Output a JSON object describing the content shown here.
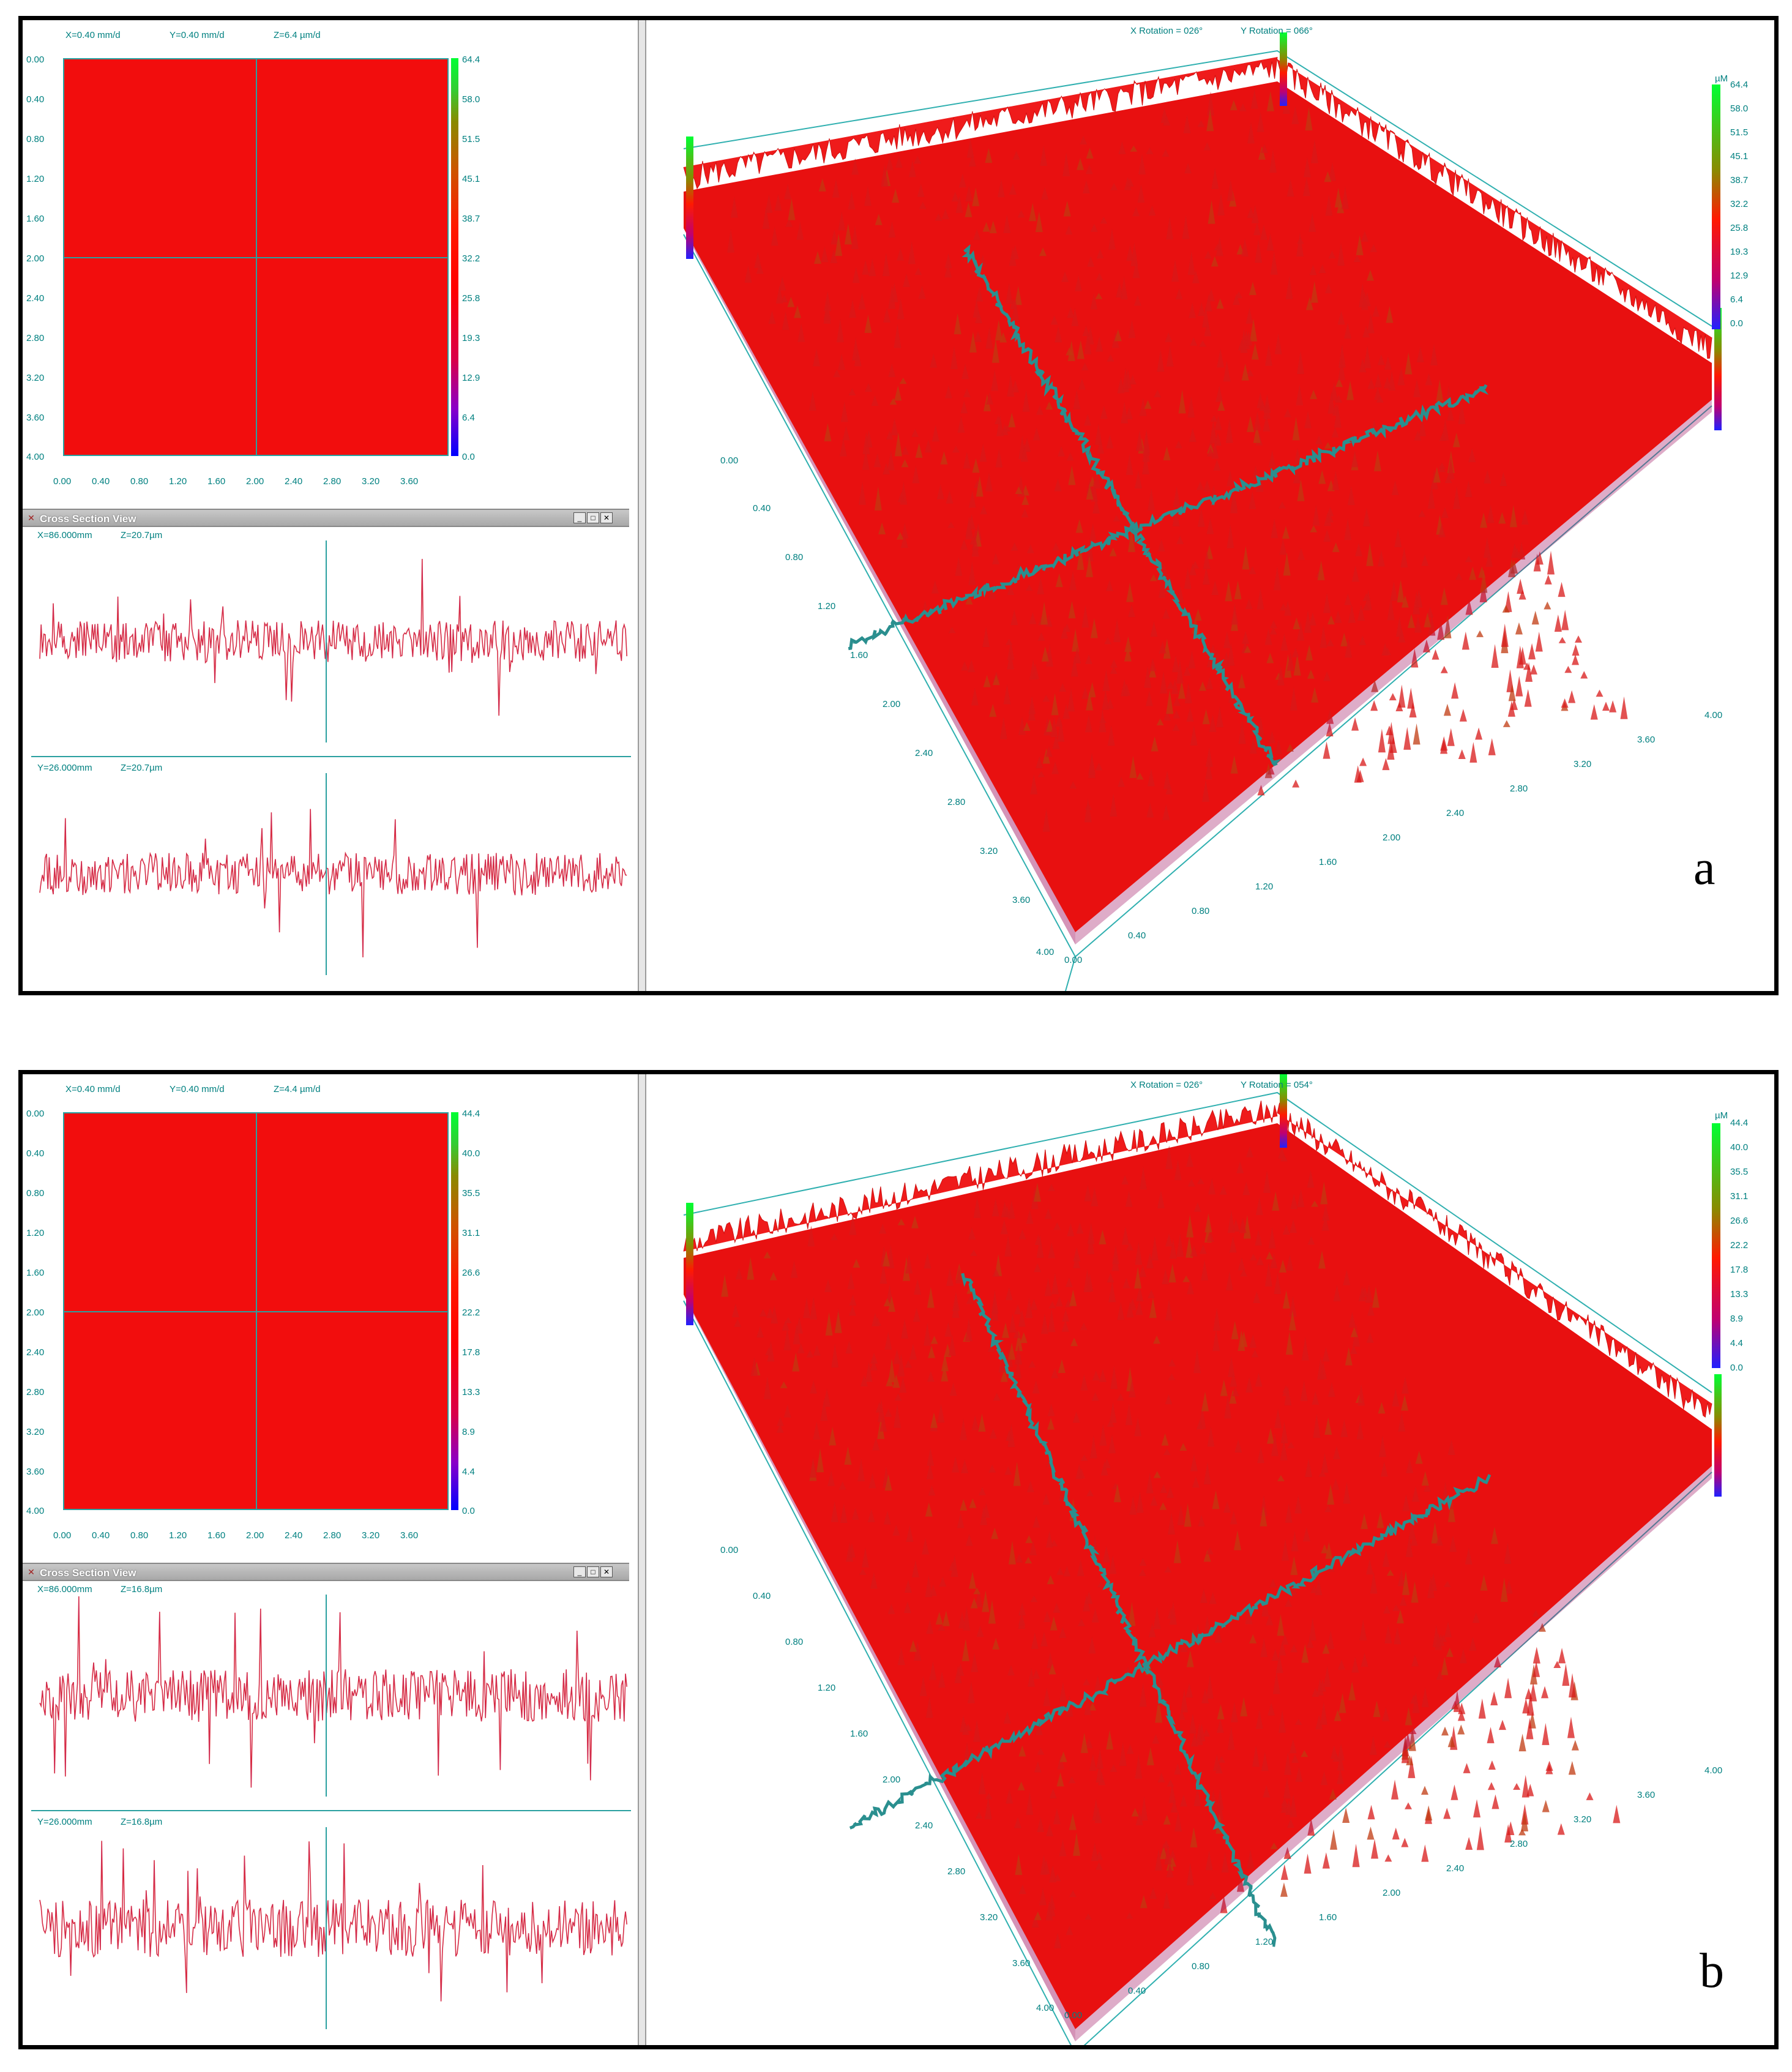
{
  "panels": [
    {
      "letter": "a",
      "readout": {
        "x": "X=0.40 mm/d",
        "y": "Y=0.40 mm/d",
        "z": "Z=6.4 µm/d"
      },
      "map_y_ticks": [
        "0.00",
        "0.40",
        "0.80",
        "1.20",
        "1.60",
        "2.00",
        "2.40",
        "2.80",
        "3.20",
        "3.60",
        "4.00"
      ],
      "map_x_ticks": [
        "0.00",
        "0.40",
        "0.80",
        "1.20",
        "1.60",
        "2.00",
        "2.40",
        "2.80",
        "3.20",
        "3.60"
      ],
      "colorbar_ticks": [
        "64.4",
        "58.0",
        "51.5",
        "45.1",
        "38.7",
        "32.2",
        "25.8",
        "19.3",
        "12.9",
        "6.4",
        "0.0"
      ],
      "window_title": "Cross Section View",
      "cs_top": {
        "label_x": "X=86.000mm",
        "label_z": "Z=20.7µm"
      },
      "cs_bottom": {
        "label_y": "Y=26.000mm",
        "label_z": "Z=20.7µm"
      },
      "rotation": {
        "x": "X Rotation = 026°",
        "y": "Y Rotation = 066°"
      },
      "legend_unit": "µM",
      "legend_ticks": [
        "64.4",
        "58.0",
        "51.5",
        "45.1",
        "38.7",
        "32.2",
        "25.8",
        "19.3",
        "12.9",
        "6.4",
        "0.0"
      ],
      "axis_left": [
        "0.00",
        "0.40",
        "0.80",
        "1.20",
        "1.60",
        "2.00",
        "2.40",
        "2.80",
        "3.20",
        "3.60",
        "4.00"
      ],
      "axis_bottom": [
        "0.00",
        "0.40",
        "0.80",
        "1.20",
        "1.60",
        "2.00",
        "2.40",
        "2.80",
        "3.20",
        "3.60",
        "4.00"
      ]
    },
    {
      "letter": "b",
      "readout": {
        "x": "X=0.40 mm/d",
        "y": "Y=0.40 mm/d",
        "z": "Z=4.4 µm/d"
      },
      "map_y_ticks": [
        "0.00",
        "0.40",
        "0.80",
        "1.20",
        "1.60",
        "2.00",
        "2.40",
        "2.80",
        "3.20",
        "3.60",
        "4.00"
      ],
      "map_x_ticks": [
        "0.00",
        "0.40",
        "0.80",
        "1.20",
        "1.60",
        "2.00",
        "2.40",
        "2.80",
        "3.20",
        "3.60"
      ],
      "colorbar_ticks": [
        "44.4",
        "40.0",
        "35.5",
        "31.1",
        "26.6",
        "22.2",
        "17.8",
        "13.3",
        "8.9",
        "4.4",
        "0.0"
      ],
      "window_title": "Cross Section View",
      "cs_top": {
        "label_x": "X=86.000mm",
        "label_z": "Z=16.8µm"
      },
      "cs_bottom": {
        "label_y": "Y=26.000mm",
        "label_z": "Z=16.8µm"
      },
      "rotation": {
        "x": "X Rotation = 026°",
        "y": "Y Rotation = 054°"
      },
      "legend_unit": "µM",
      "legend_ticks": [
        "44.4",
        "40.0",
        "35.5",
        "31.1",
        "26.6",
        "22.2",
        "17.8",
        "13.3",
        "8.9",
        "4.4",
        "0.0"
      ],
      "axis_left": [
        "0.00",
        "0.40",
        "0.80",
        "1.20",
        "1.60",
        "2.00",
        "2.40",
        "2.80",
        "3.20",
        "3.60",
        "4.00"
      ],
      "axis_bottom": [
        "0.00",
        "0.40",
        "0.80",
        "1.20",
        "1.60",
        "2.00",
        "2.40",
        "2.80",
        "3.20",
        "3.60",
        "4.00"
      ]
    }
  ],
  "colors": {
    "surface": "#f20d0d",
    "axis": "#008080",
    "crossline": "#2aa0a0"
  }
}
